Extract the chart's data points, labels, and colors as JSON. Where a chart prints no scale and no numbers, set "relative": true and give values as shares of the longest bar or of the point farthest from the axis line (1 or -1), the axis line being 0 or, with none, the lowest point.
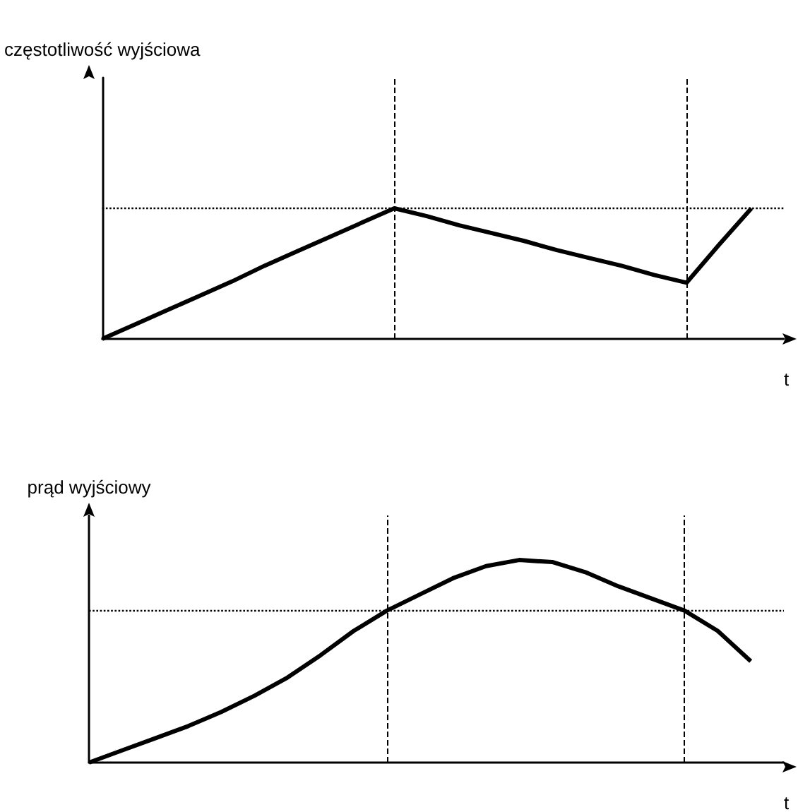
{
  "chart_data": [
    {
      "type": "line",
      "ylabel": "częstotliwość wyjściowa",
      "xlabel": "t",
      "relative": true,
      "tick_labels": false,
      "grid": false,
      "marker": "none",
      "line_style": "solid",
      "categories": [
        null,
        null,
        null,
        null,
        null,
        null,
        null,
        null,
        null,
        null,
        null,
        null,
        null,
        null,
        null,
        null,
        null,
        null,
        null,
        null,
        null,
        null
      ],
      "series": [
        {
          "color": "#000000",
          "values": [
            0,
            0.11,
            0.22,
            0.33,
            0.44,
            0.56,
            0.67,
            0.78,
            0.89,
            1,
            0.94,
            0.87,
            0.81,
            0.75,
            0.68,
            0.62,
            0.56,
            0.49,
            0.43,
            0.72,
            1,
            null
          ]
        }
      ],
      "ref_lines": [
        {
          "axis": "y",
          "value": 1,
          "color": "#000000",
          "line_style": "dotted"
        }
      ]
    },
    {
      "type": "line",
      "ylabel": "prąd wyjściowy",
      "xlabel": "t",
      "relative": true,
      "tick_labels": false,
      "grid": false,
      "marker": "none",
      "line_style": "solid",
      "categories": [
        null,
        null,
        null,
        null,
        null,
        null,
        null,
        null,
        null,
        null,
        null,
        null,
        null,
        null,
        null,
        null,
        null,
        null,
        null,
        null,
        null,
        null
      ],
      "series": [
        {
          "color": "#000000",
          "values": [
            0,
            0.06,
            0.12,
            0.18,
            0.25,
            0.33,
            0.42,
            0.53,
            0.65,
            0.75,
            0.83,
            0.91,
            0.97,
            1,
            0.99,
            0.94,
            0.87,
            0.81,
            0.75,
            0.65,
            0.5,
            null
          ]
        }
      ],
      "ref_lines": [
        {
          "axis": "y",
          "value": 0.75,
          "color": "#000000",
          "line_style": "dotted"
        }
      ]
    }
  ]
}
